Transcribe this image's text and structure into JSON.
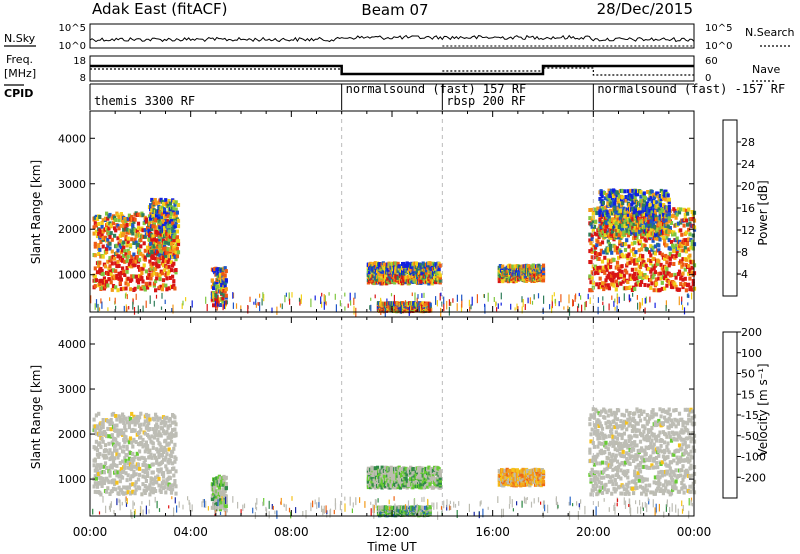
{
  "header": {
    "station": "Adak East (fitACF)",
    "beam": "Beam 07",
    "date": "28/Dec/2015"
  },
  "top_panels": {
    "noise": {
      "left_label": "N.Sky",
      "right_label": "N.Search",
      "left_ticks": [
        "10^5",
        "10^0"
      ],
      "right_ticks": [
        "10^5",
        "10^0"
      ]
    },
    "freq": {
      "left_label": "Freq.",
      "left_unit": "[MHz]",
      "right_label": "Nave",
      "left_ticks": [
        "18",
        "8"
      ],
      "right_ticks": [
        "60",
        "0"
      ]
    },
    "cpid": {
      "label": "CPID",
      "modes": [
        {
          "start_h": 0,
          "end_h": 10,
          "text": "themis 3300 RF"
        },
        {
          "start_h": 10,
          "end_h": 14,
          "text": "normalsound (fast) 157 RF"
        },
        {
          "start_h": 14,
          "end_h": 20,
          "text": "rbsp 200 RF"
        },
        {
          "start_h": 20,
          "end_h": 24,
          "text": "normalsound (fast) -157 RF"
        }
      ]
    }
  },
  "colors": {
    "power_scale": [
      "#1020e0",
      "#1e56c8",
      "#2f7d5a",
      "#7fc640",
      "#f2d21a",
      "#f59a1a",
      "#ee5a14",
      "#d81414"
    ],
    "velocity_scale": [
      "#e01010",
      "#ee6614",
      "#f39a1a",
      "#f5c21a",
      "#bcbcb0",
      "#bcbcb0",
      "#66cc33",
      "#2f8a46",
      "#2a67c8",
      "#1a2aa8"
    ],
    "gray": "#bdbdb5"
  },
  "chart_data": [
    {
      "type": "heatmap",
      "name": "power",
      "xlabel": "",
      "ylabel": "Slant Range [km]",
      "xlim": [
        0,
        24
      ],
      "ylim": [
        180,
        4600
      ],
      "x_ticks": [],
      "y_ticks": [
        "1000",
        "2000",
        "3000",
        "4000"
      ],
      "colorbar_label": "Power [dB]",
      "colorbar_ticks": [
        "4",
        "8",
        "12",
        "16",
        "20",
        "24",
        "28"
      ],
      "colorbar_range": [
        0,
        32
      ],
      "mode_change_hours": [
        10,
        14,
        20
      ],
      "echo_regions": [
        {
          "t0": 0.1,
          "t1": 3.4,
          "r_lo": 700,
          "r_hi": 2400,
          "level": 0.6
        },
        {
          "t0": 2.3,
          "t1": 3.5,
          "r_lo": 1400,
          "r_hi": 2700,
          "level": 0.35
        },
        {
          "t0": 4.8,
          "t1": 5.4,
          "r_lo": 350,
          "r_hi": 1200,
          "level": 0.4
        },
        {
          "t0": 11.0,
          "t1": 13.9,
          "r_lo": 850,
          "r_hi": 1300,
          "level": 0.35
        },
        {
          "t0": 11.4,
          "t1": 13.5,
          "r_lo": 240,
          "r_hi": 420,
          "level": 0.5
        },
        {
          "t0": 16.2,
          "t1": 18.0,
          "r_lo": 900,
          "r_hi": 1250,
          "level": 0.4
        },
        {
          "t0": 19.8,
          "t1": 24.0,
          "r_lo": 700,
          "r_hi": 2500,
          "level": 0.6
        },
        {
          "t0": 20.2,
          "t1": 23.0,
          "r_lo": 1900,
          "r_hi": 2900,
          "level": 0.3
        }
      ]
    },
    {
      "type": "heatmap",
      "name": "velocity",
      "xlabel": "Time UT",
      "ylabel": "Slant Range [km]",
      "xlim": [
        0,
        24
      ],
      "ylim": [
        180,
        4600
      ],
      "x_ticks": [
        "00:00",
        "04:00",
        "08:00",
        "12:00",
        "16:00",
        "20:00",
        "00:00"
      ],
      "y_ticks": [
        "1000",
        "2000",
        "3000",
        "4000"
      ],
      "colorbar_label": "Velocity [m s⁻¹]",
      "colorbar_ticks": [
        "-200",
        "-100",
        "-50",
        "-15",
        "15",
        "50",
        "100",
        "200"
      ],
      "colorbar_range": [
        -250,
        250
      ],
      "mode_change_hours": [
        10,
        14,
        20
      ],
      "echo_regions": [
        {
          "t0": 0.1,
          "t1": 3.4,
          "r_lo": 700,
          "r_hi": 2500,
          "level": 0.0
        },
        {
          "t0": 4.8,
          "t1": 5.4,
          "r_lo": 350,
          "r_hi": 1100,
          "level": 0.2
        },
        {
          "t0": 11.0,
          "t1": 13.9,
          "r_lo": 850,
          "r_hi": 1300,
          "level": 0.2
        },
        {
          "t0": 11.4,
          "t1": 13.5,
          "r_lo": 240,
          "r_hi": 420,
          "level": 0.35
        },
        {
          "t0": 16.2,
          "t1": 18.0,
          "r_lo": 900,
          "r_hi": 1250,
          "level": -0.35
        },
        {
          "t0": 19.8,
          "t1": 24.0,
          "r_lo": 700,
          "r_hi": 2600,
          "level": 0.0
        }
      ]
    }
  ]
}
